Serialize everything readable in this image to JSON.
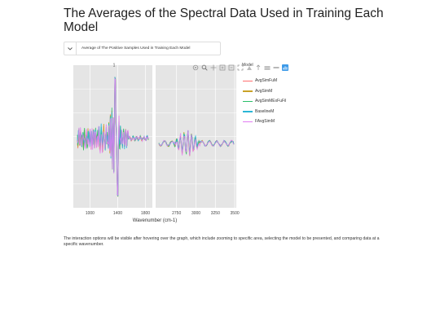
{
  "page": {
    "title": "The Averages of the Spectral Data Used in Training Each Model",
    "note": "The interaction options will be visible after hovering over the graph, which include zooming to specific area, selecting the model to be presented, and comparing data at a specific wavenumber."
  },
  "dropdown": {
    "selected": "Average of The Positive Samples Used in Training Each Model"
  },
  "modebar": {
    "icons": [
      "camera-icon",
      "zoom-icon",
      "pan-icon",
      "zoom-in-icon",
      "zoom-out-icon",
      "autoscale-icon",
      "reset-axes-icon",
      "spike-lines-icon",
      "compare-hover-icon",
      "closest-hover-icon",
      "plotly-logo-icon"
    ]
  },
  "chart_data": {
    "type": "line",
    "panel_label": "1",
    "xlabel": "Wavenumber (cm-1)",
    "ylabel": "",
    "legend_title": "Model",
    "legend_position": "right",
    "grid": true,
    "panels": [
      {
        "xlim": [
          760,
          1900
        ],
        "ticks": [
          1000,
          1400,
          1800
        ]
      },
      {
        "xlim": [
          2480,
          3520
        ],
        "ticks": [
          2750,
          3000,
          3250,
          3500
        ]
      }
    ],
    "series": [
      {
        "name": "AvgSimFuM",
        "color": "#ff6f6f"
      },
      {
        "name": "AvgSimM",
        "color": "#c9a227"
      },
      {
        "name": "AvgSimMExFuFil",
        "color": "#2bbf6a"
      },
      {
        "name": "BaselineM",
        "color": "#2ab6d6"
      },
      {
        "name": "FAvgSimM",
        "color": "#e27cf2"
      }
    ]
  }
}
